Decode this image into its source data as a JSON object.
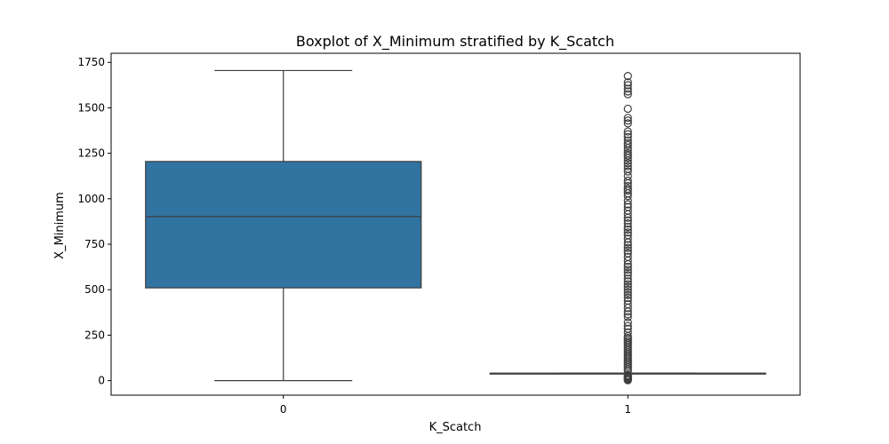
{
  "chart_data": {
    "type": "box",
    "title": "Boxplot of X_Minimum stratified by K_Scatch",
    "xlabel": "K_Scatch",
    "ylabel": "X_Minimum",
    "ylim": [
      -80,
      1800
    ],
    "yticks": [
      0,
      250,
      500,
      750,
      1000,
      1250,
      1500,
      1750
    ],
    "grid": false,
    "box_color": "#3274a1",
    "edge_color": "#3d3d3d",
    "categories": [
      "0",
      "1"
    ],
    "boxes": [
      {
        "category": "0",
        "whisker_low": 0,
        "q1": 510,
        "median": 902,
        "q3": 1205,
        "whisker_high": 1705,
        "outliers": []
      },
      {
        "category": "1",
        "whisker_low": 38,
        "q1": 38,
        "median": 40,
        "q3": 41,
        "whisker_high": 41,
        "outliers": [
          1675,
          1640,
          1625,
          1605,
          1590,
          1575,
          1495,
          1445,
          1430,
          1415,
          1370,
          1355,
          1340,
          1320,
          1305,
          1295,
          1280,
          1265,
          1250,
          1238,
          1225,
          1210,
          1195,
          1180,
          1165,
          1150,
          1125,
          1100,
          1085,
          1070,
          1055,
          1045,
          1030,
          1015,
          990,
          970,
          955,
          935,
          915,
          895,
          880,
          865,
          845,
          830,
          815,
          800,
          780,
          760,
          745,
          730,
          715,
          700,
          680,
          660,
          640,
          625,
          610,
          595,
          580,
          560,
          545,
          530,
          515,
          500,
          485,
          470,
          455,
          440,
          420,
          400,
          380,
          365,
          350,
          320,
          300,
          285,
          265,
          245,
          235,
          225,
          215,
          205,
          195,
          185,
          175,
          165,
          155,
          145,
          135,
          125,
          115,
          105,
          95,
          85,
          75,
          65,
          55,
          30,
          25,
          20,
          15,
          10,
          5,
          2
        ]
      }
    ]
  }
}
